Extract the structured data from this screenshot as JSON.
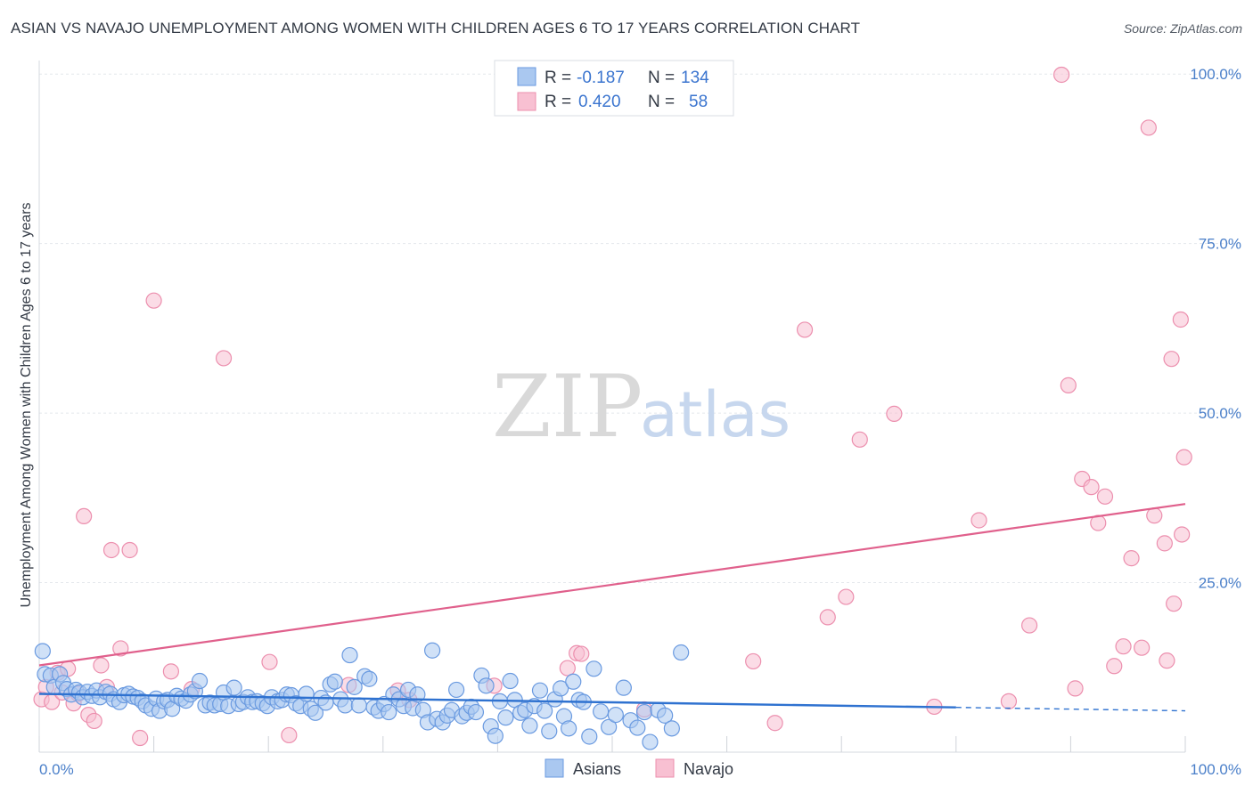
{
  "title": "ASIAN VS NAVAJO UNEMPLOYMENT AMONG WOMEN WITH CHILDREN AGES 6 TO 17 YEARS CORRELATION CHART",
  "source": "Source: ZipAtlas.com",
  "watermark": {
    "zip": "ZIP",
    "atlas": "atlas"
  },
  "legend": {
    "rows": [
      {
        "r_label": "R =",
        "r_value": "-0.187",
        "n_label": "N =",
        "n_value": "134"
      },
      {
        "r_label": "R =",
        "r_value": "0.420",
        "n_label": "N =",
        "n_value": "58"
      }
    ]
  },
  "colors": {
    "asians_fill": "#aac8f0",
    "asians_stroke": "#6a9ae0",
    "asians_line": "#2f72d0",
    "navajo_fill": "#f8c0d2",
    "navajo_stroke": "#ec8fae",
    "navajo_line": "#e0608c",
    "grid": "#e4e7ec",
    "tick_text": "#4a7fc9"
  },
  "chart_data": {
    "type": "scatter",
    "title": "ASIAN VS NAVAJO UNEMPLOYMENT AMONG WOMEN WITH CHILDREN AGES 6 TO 17 YEARS CORRELATION CHART",
    "xlabel": "",
    "ylabel": "Unemployment Among Women with Children Ages 6 to 17 years",
    "xlim": [
      0,
      100
    ],
    "ylim": [
      0,
      102
    ],
    "x_ticks": [
      "0.0%",
      "100.0%"
    ],
    "y_ticks": [
      {
        "value": 25,
        "label": "25.0%"
      },
      {
        "value": 50,
        "label": "50.0%"
      },
      {
        "value": 75,
        "label": "75.0%"
      },
      {
        "value": 100,
        "label": "100.0%"
      }
    ],
    "grid": true,
    "legend_position": "top-center",
    "series": [
      {
        "name": "Asians",
        "r": -0.187,
        "n": 134,
        "trend": {
          "x0": 0,
          "y0": 8.6,
          "x1": 80,
          "y1": 6.6,
          "dash_to_x": 100,
          "dash_to_y": 6.1
        },
        "points": [
          [
            0.3,
            14.9
          ],
          [
            0.5,
            11.5
          ],
          [
            1.0,
            11.3
          ],
          [
            1.3,
            9.6
          ],
          [
            1.8,
            11.5
          ],
          [
            2.1,
            10.2
          ],
          [
            2.4,
            9.3
          ],
          [
            2.8,
            8.5
          ],
          [
            3.2,
            9.2
          ],
          [
            3.5,
            8.8
          ],
          [
            3.8,
            8.1
          ],
          [
            4.2,
            8.9
          ],
          [
            4.6,
            8.3
          ],
          [
            5.0,
            9.1
          ],
          [
            5.3,
            8.1
          ],
          [
            5.8,
            8.9
          ],
          [
            6.2,
            8.6
          ],
          [
            6.5,
            7.8
          ],
          [
            7.0,
            7.4
          ],
          [
            7.4,
            8.4
          ],
          [
            7.8,
            8.6
          ],
          [
            8.2,
            8.2
          ],
          [
            8.6,
            8.0
          ],
          [
            9.0,
            7.5
          ],
          [
            9.3,
            6.9
          ],
          [
            9.8,
            6.4
          ],
          [
            10.2,
            7.9
          ],
          [
            10.5,
            6.1
          ],
          [
            10.9,
            7.5
          ],
          [
            11.2,
            7.7
          ],
          [
            11.6,
            6.4
          ],
          [
            12.0,
            8.3
          ],
          [
            12.4,
            7.9
          ],
          [
            12.8,
            7.6
          ],
          [
            13.2,
            8.5
          ],
          [
            13.6,
            9.0
          ],
          [
            14.0,
            10.5
          ],
          [
            14.5,
            6.9
          ],
          [
            14.9,
            7.3
          ],
          [
            15.3,
            6.9
          ],
          [
            15.8,
            7.1
          ],
          [
            16.1,
            8.8
          ],
          [
            16.5,
            6.8
          ],
          [
            17.0,
            9.5
          ],
          [
            17.4,
            7.1
          ],
          [
            17.8,
            7.4
          ],
          [
            18.2,
            8.1
          ],
          [
            18.6,
            7.4
          ],
          [
            19.0,
            7.5
          ],
          [
            19.5,
            7.2
          ],
          [
            19.9,
            6.8
          ],
          [
            20.3,
            8.1
          ],
          [
            20.8,
            7.5
          ],
          [
            21.2,
            7.7
          ],
          [
            21.6,
            8.5
          ],
          [
            22.0,
            8.4
          ],
          [
            22.4,
            7.2
          ],
          [
            22.8,
            6.8
          ],
          [
            23.3,
            8.6
          ],
          [
            23.7,
            6.4
          ],
          [
            24.1,
            5.8
          ],
          [
            24.6,
            8.0
          ],
          [
            25.0,
            7.3
          ],
          [
            25.4,
            10.0
          ],
          [
            25.8,
            10.4
          ],
          [
            26.3,
            7.8
          ],
          [
            26.7,
            6.9
          ],
          [
            27.1,
            14.3
          ],
          [
            27.5,
            9.6
          ],
          [
            27.9,
            6.9
          ],
          [
            28.4,
            11.2
          ],
          [
            28.8,
            10.8
          ],
          [
            29.2,
            6.6
          ],
          [
            29.6,
            6.1
          ],
          [
            30.1,
            7.1
          ],
          [
            30.5,
            5.9
          ],
          [
            30.9,
            8.5
          ],
          [
            31.4,
            7.8
          ],
          [
            31.8,
            6.8
          ],
          [
            32.2,
            9.2
          ],
          [
            32.6,
            6.5
          ],
          [
            33.0,
            8.5
          ],
          [
            33.5,
            6.2
          ],
          [
            33.9,
            4.4
          ],
          [
            34.3,
            15.0
          ],
          [
            34.7,
            4.9
          ],
          [
            35.2,
            4.4
          ],
          [
            35.6,
            5.4
          ],
          [
            36.0,
            6.2
          ],
          [
            36.4,
            9.2
          ],
          [
            36.9,
            5.3
          ],
          [
            37.3,
            5.8
          ],
          [
            37.7,
            6.7
          ],
          [
            38.1,
            5.9
          ],
          [
            38.6,
            11.3
          ],
          [
            39.0,
            9.8
          ],
          [
            39.4,
            3.8
          ],
          [
            39.8,
            2.4
          ],
          [
            40.2,
            7.5
          ],
          [
            40.7,
            5.1
          ],
          [
            41.1,
            10.5
          ],
          [
            41.5,
            7.7
          ],
          [
            42.0,
            5.8
          ],
          [
            42.4,
            6.2
          ],
          [
            42.8,
            3.9
          ],
          [
            43.2,
            6.8
          ],
          [
            43.7,
            9.1
          ],
          [
            44.1,
            6.1
          ],
          [
            44.5,
            3.1
          ],
          [
            45.0,
            7.8
          ],
          [
            45.5,
            9.4
          ],
          [
            45.8,
            5.3
          ],
          [
            46.2,
            3.5
          ],
          [
            46.6,
            10.4
          ],
          [
            47.1,
            7.7
          ],
          [
            47.5,
            7.4
          ],
          [
            48.0,
            2.3
          ],
          [
            48.4,
            12.3
          ],
          [
            49.0,
            6.0
          ],
          [
            49.7,
            3.7
          ],
          [
            50.3,
            5.5
          ],
          [
            51.0,
            9.5
          ],
          [
            51.6,
            4.7
          ],
          [
            52.2,
            3.6
          ],
          [
            52.8,
            5.9
          ],
          [
            53.3,
            1.5
          ],
          [
            54.0,
            6.2
          ],
          [
            54.6,
            5.4
          ],
          [
            55.2,
            3.5
          ],
          [
            56.0,
            14.7
          ]
        ]
      },
      {
        "name": "Navajo",
        "r": 0.42,
        "n": 58,
        "trend": {
          "x0": 0,
          "y0": 12.8,
          "x1": 100,
          "y1": 36.6
        },
        "points": [
          [
            0.2,
            7.8
          ],
          [
            0.6,
            9.6
          ],
          [
            1.1,
            7.4
          ],
          [
            1.6,
            11.7
          ],
          [
            2.0,
            8.8
          ],
          [
            2.5,
            12.3
          ],
          [
            3.0,
            7.2
          ],
          [
            3.4,
            8.6
          ],
          [
            3.9,
            34.8
          ],
          [
            4.3,
            5.5
          ],
          [
            4.8,
            4.6
          ],
          [
            5.4,
            12.8
          ],
          [
            5.9,
            9.6
          ],
          [
            6.3,
            29.8
          ],
          [
            7.1,
            15.3
          ],
          [
            7.9,
            29.8
          ],
          [
            8.8,
            2.1
          ],
          [
            10.0,
            66.6
          ],
          [
            11.5,
            11.9
          ],
          [
            13.3,
            9.3
          ],
          [
            16.1,
            58.1
          ],
          [
            20.1,
            13.3
          ],
          [
            21.8,
            2.5
          ],
          [
            27.0,
            9.9
          ],
          [
            31.3,
            9.1
          ],
          [
            32.3,
            7.7
          ],
          [
            39.7,
            9.8
          ],
          [
            46.1,
            12.4
          ],
          [
            46.9,
            14.6
          ],
          [
            47.3,
            14.5
          ],
          [
            52.8,
            6.3
          ],
          [
            62.3,
            13.4
          ],
          [
            64.2,
            4.3
          ],
          [
            66.8,
            62.3
          ],
          [
            68.8,
            19.9
          ],
          [
            70.4,
            22.9
          ],
          [
            71.6,
            46.1
          ],
          [
            74.6,
            49.9
          ],
          [
            78.1,
            6.7
          ],
          [
            82.0,
            34.2
          ],
          [
            84.6,
            7.5
          ],
          [
            86.4,
            18.7
          ],
          [
            89.2,
            99.9
          ],
          [
            89.8,
            54.1
          ],
          [
            90.4,
            9.4
          ],
          [
            91.0,
            40.3
          ],
          [
            91.8,
            39.1
          ],
          [
            92.4,
            33.8
          ],
          [
            93.0,
            37.7
          ],
          [
            93.8,
            12.7
          ],
          [
            94.6,
            15.6
          ],
          [
            95.3,
            28.6
          ],
          [
            96.2,
            15.4
          ],
          [
            96.8,
            92.1
          ],
          [
            97.3,
            34.9
          ],
          [
            98.2,
            30.8
          ],
          [
            99.0,
            21.9
          ],
          [
            99.6,
            63.8
          ]
        ]
      }
    ]
  },
  "extra_navajo_points": [
    [
      98.8,
      58.0
    ],
    [
      99.7,
      32.1
    ],
    [
      98.4,
      13.5
    ],
    [
      99.9,
      43.5
    ]
  ],
  "bottom_legend": [
    "Asians",
    "Navajo"
  ]
}
